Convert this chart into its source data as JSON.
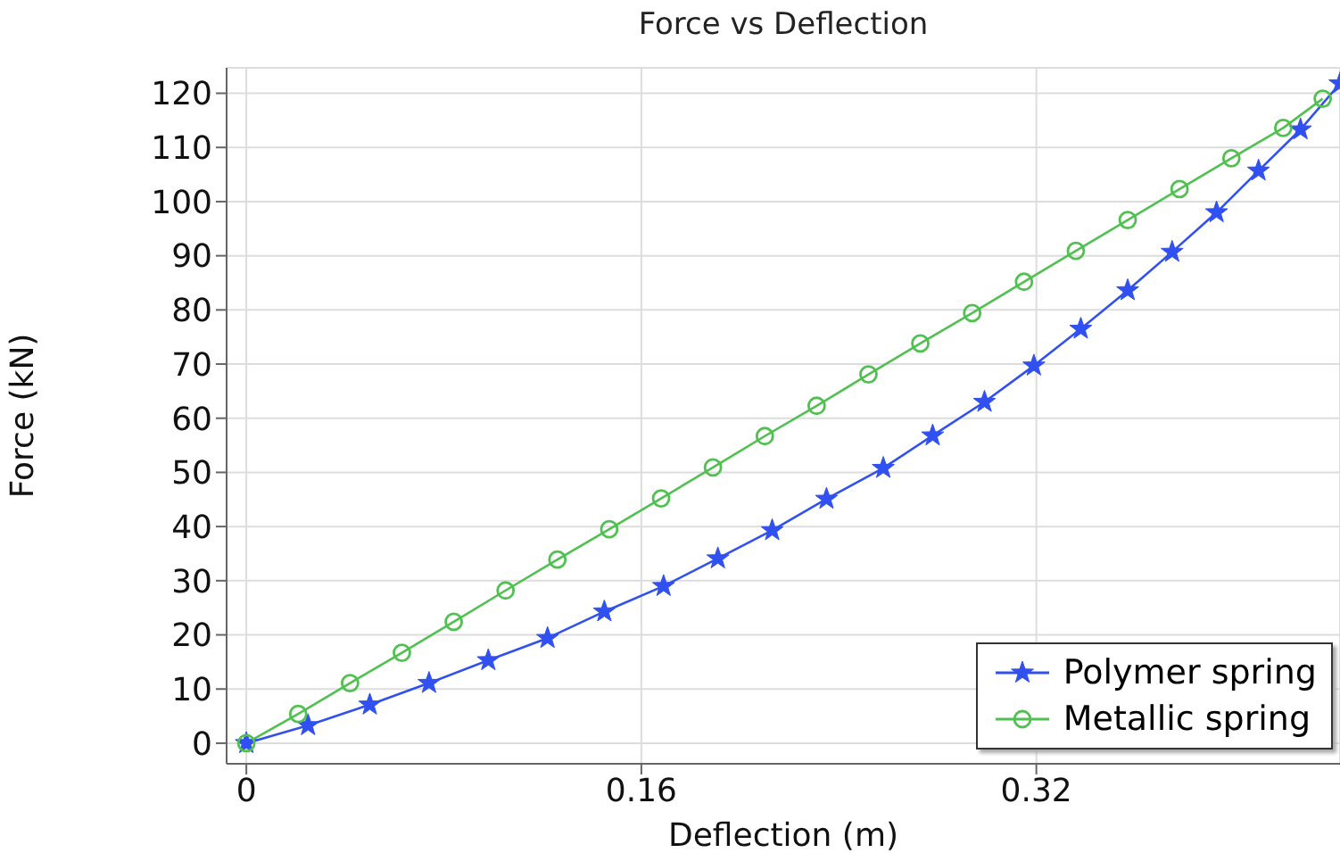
{
  "chart_data": {
    "type": "line",
    "title": "Force vs Deflection",
    "xlabel": "Deflection (m)",
    "ylabel": "Force (kN)",
    "xlim": [
      -0.008,
      0.443
    ],
    "xticks": [
      0,
      0.16,
      0.32
    ],
    "ylim": [
      -3.8,
      124.7
    ],
    "yticks": [
      0,
      10,
      20,
      30,
      40,
      50,
      60,
      70,
      80,
      90,
      100,
      110,
      120
    ],
    "grid": true,
    "legend": "bottom right",
    "line_style": "solid",
    "series": [
      {
        "name": "Polymer spring",
        "color": "#3050f0",
        "marker": "star",
        "x": [
          0,
          0.025,
          0.05,
          0.074,
          0.098,
          0.122,
          0.145,
          0.169,
          0.191,
          0.213,
          0.235,
          0.258,
          0.278,
          0.299,
          0.319,
          0.338,
          0.357,
          0.375,
          0.393,
          0.41,
          0.427,
          0.443
        ],
        "values": [
          0,
          3.3,
          7.1,
          11.1,
          15.3,
          19.4,
          24.3,
          29,
          34.1,
          39.3,
          45.1,
          50.8,
          56.8,
          63,
          69.7,
          76.5,
          83.6,
          90.7,
          98,
          105.7,
          113.3,
          121.8
        ]
      },
      {
        "name": "Metallic spring",
        "color": "#50c050",
        "marker": "circle",
        "x": [
          0,
          0.021,
          0.042,
          0.063,
          0.084,
          0.105,
          0.126,
          0.147,
          0.168,
          0.189,
          0.21,
          0.231,
          0.252,
          0.273,
          0.294,
          0.315,
          0.336,
          0.357,
          0.378,
          0.399,
          0.42,
          0.436
        ],
        "values": [
          0,
          5.4,
          11.1,
          16.7,
          22.4,
          28.2,
          33.9,
          39.5,
          45.2,
          50.9,
          56.7,
          62.3,
          68.1,
          73.8,
          79.4,
          85.2,
          90.9,
          96.6,
          102.3,
          108,
          113.6,
          119
        ]
      }
    ]
  }
}
